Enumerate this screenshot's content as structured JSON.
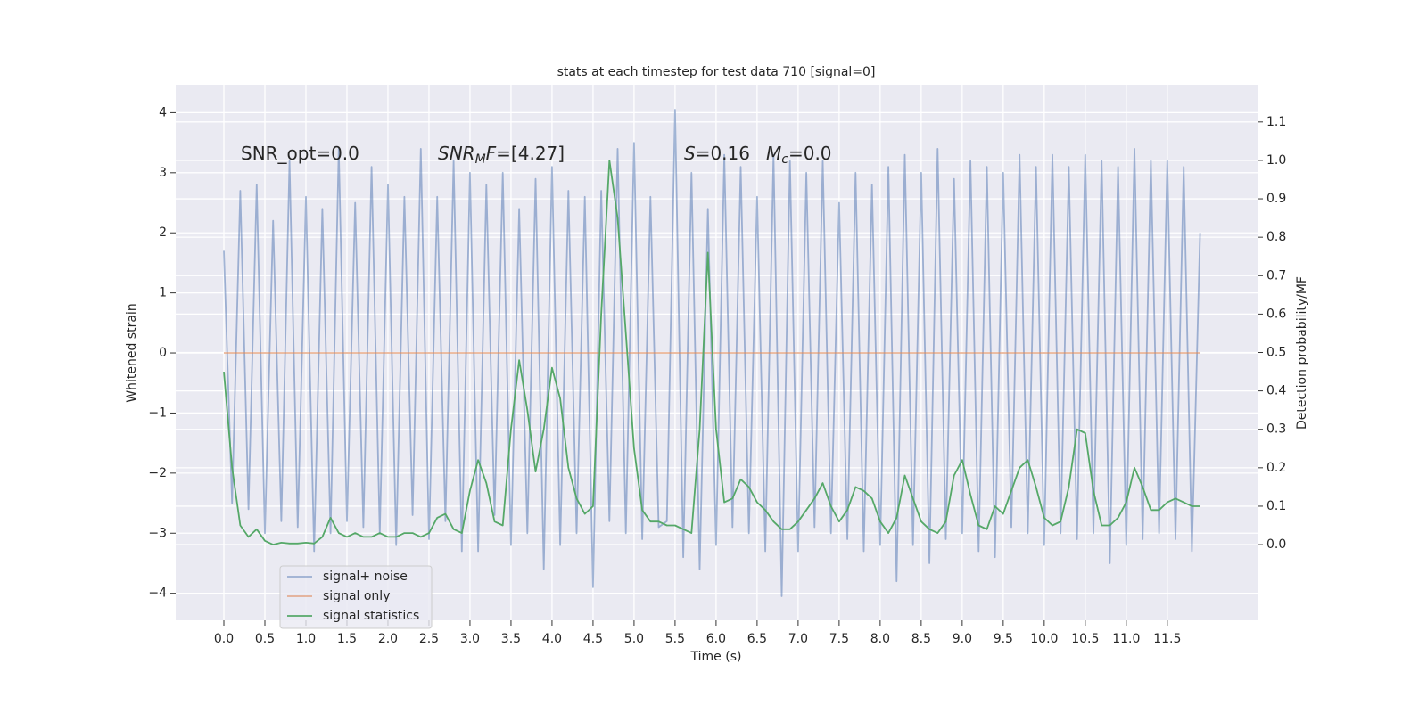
{
  "chart_data": {
    "type": "line",
    "title": "stats at each timestep for test data 710 [signal=0]",
    "xlabel": "Time (s)",
    "ylabel": "Whitened strain",
    "y2label": "Detection probability/MF",
    "annotations": [
      [
        {
          "text": "SNR_opt=0.0",
          "style": "normal"
        }
      ],
      [
        {
          "text": "SNR",
          "style": "italic"
        },
        {
          "text": "M",
          "style": "sub"
        },
        {
          "text": "F",
          "style": "italic"
        },
        {
          "text": "=[4.27]",
          "style": "normal"
        }
      ],
      [
        {
          "text": "S",
          "style": "italic"
        },
        {
          "text": "=0.16",
          "style": "normal"
        },
        {
          "text": "M",
          "style": "italic"
        },
        {
          "text": "c",
          "style": "sub"
        },
        {
          "text": "=0.0",
          "style": "normal"
        }
      ]
    ],
    "x": [
      0,
      0.1,
      0.2,
      0.3,
      0.4,
      0.5,
      0.6,
      0.7,
      0.8,
      0.9,
      1,
      1.1,
      1.2,
      1.3,
      1.4,
      1.5,
      1.6,
      1.7,
      1.8,
      1.9,
      2,
      2.1,
      2.2,
      2.3,
      2.4,
      2.5,
      2.6,
      2.7,
      2.8,
      2.9,
      3,
      3.1,
      3.2,
      3.3,
      3.4,
      3.5,
      3.6,
      3.7,
      3.8,
      3.9,
      4,
      4.1,
      4.2,
      4.3,
      4.4,
      4.5,
      4.6,
      4.7,
      4.8,
      4.9,
      5,
      5.1,
      5.2,
      5.3,
      5.4,
      5.5,
      5.6,
      5.7,
      5.8,
      5.9,
      6,
      6.1,
      6.2,
      6.3,
      6.4,
      6.5,
      6.6,
      6.7,
      6.8,
      6.9,
      7,
      7.1,
      7.2,
      7.3,
      7.4,
      7.5,
      7.6,
      7.7,
      7.8,
      7.9,
      8,
      8.1,
      8.2,
      8.3,
      8.4,
      8.5,
      8.6,
      8.7,
      8.8,
      8.9,
      9,
      9.1,
      9.2,
      9.3,
      9.4,
      9.5,
      9.6,
      9.7,
      9.8,
      9.9,
      10,
      10.1,
      10.2,
      10.3,
      10.4,
      10.5,
      10.6,
      10.7,
      10.8,
      10.9,
      11,
      11.1,
      11.2,
      11.3,
      11.4,
      11.5,
      11.6,
      11.7,
      11.8,
      11.9
    ],
    "series": [
      {
        "name": "signal+ noise",
        "color": "#4c72b0",
        "opacity": 0.5,
        "values": [
          1.7,
          -2.5,
          2.7,
          -2.6,
          2.8,
          -3.0,
          2.2,
          -2.8,
          3.2,
          -2.9,
          2.6,
          -3.3,
          2.4,
          -3.0,
          3.4,
          -2.8,
          2.5,
          -2.9,
          3.1,
          -3.0,
          2.8,
          -3.2,
          2.6,
          -2.7,
          3.4,
          -3.1,
          2.6,
          -2.8,
          3.2,
          -3.3,
          3.0,
          -3.3,
          2.8,
          -2.7,
          3.0,
          -3.2,
          2.4,
          -3.0,
          2.9,
          -3.6,
          3.1,
          -3.2,
          2.7,
          -3.0,
          2.6,
          -3.9,
          2.7,
          -2.8,
          3.4,
          -3.0,
          3.5,
          -3.1,
          2.6,
          -2.9,
          -2.8,
          4.05,
          -3.4,
          3.0,
          -3.6,
          2.4,
          -3.2,
          3.3,
          -2.9,
          3.1,
          -3.0,
          2.6,
          -3.3,
          3.3,
          -4.05,
          3.2,
          -3.3,
          3.0,
          -2.9,
          3.2,
          -3.0,
          2.5,
          -3.1,
          3.0,
          -3.3,
          2.8,
          -3.2,
          3.1,
          -3.8,
          3.3,
          -3.2,
          3.0,
          -3.5,
          3.4,
          -3.1,
          2.9,
          -3.0,
          3.2,
          -3.3,
          3.1,
          -3.4,
          3.0,
          -2.9,
          3.3,
          -3.0,
          3.1,
          -3.2,
          3.3,
          -3.0,
          3.1,
          -3.1,
          3.3,
          -3.0,
          3.2,
          -3.5,
          3.1,
          -3.2,
          3.4,
          -3.1,
          3.2,
          -3.0,
          3.2,
          -3.1,
          3.1,
          -3.3,
          2.0
        ]
      },
      {
        "name": "signal only",
        "color": "#dd8452",
        "opacity": 0.6,
        "values": [
          0,
          0,
          0,
          0,
          0,
          0,
          0,
          0,
          0,
          0,
          0,
          0,
          0,
          0,
          0,
          0,
          0,
          0,
          0,
          0,
          0,
          0,
          0,
          0,
          0,
          0,
          0,
          0,
          0,
          0,
          0,
          0,
          0,
          0,
          0,
          0,
          0,
          0,
          0,
          0,
          0,
          0,
          0,
          0,
          0,
          0,
          0,
          0,
          0,
          0,
          0,
          0,
          0,
          0,
          0,
          0,
          0,
          0,
          0,
          0,
          0,
          0,
          0,
          0,
          0,
          0,
          0,
          0,
          0,
          0,
          0,
          0,
          0,
          0,
          0,
          0,
          0,
          0,
          0,
          0,
          0,
          0,
          0,
          0,
          0,
          0,
          0,
          0,
          0,
          0,
          0,
          0,
          0,
          0,
          0,
          0,
          0,
          0,
          0,
          0,
          0,
          0,
          0,
          0,
          0,
          0,
          0,
          0,
          0,
          0,
          0,
          0,
          0,
          0,
          0,
          0,
          0,
          0,
          0,
          0
        ]
      },
      {
        "name": "signal statistics",
        "color": "#55a868",
        "opacity": 1,
        "axis": "y2",
        "values": [
          0.45,
          0.2,
          0.05,
          0.02,
          0.04,
          0.01,
          0.0,
          0.005,
          0.003,
          0.003,
          0.005,
          0.003,
          0.02,
          0.07,
          0.03,
          0.02,
          0.03,
          0.02,
          0.02,
          0.03,
          0.02,
          0.02,
          0.03,
          0.03,
          0.02,
          0.03,
          0.07,
          0.08,
          0.04,
          0.03,
          0.14,
          0.22,
          0.16,
          0.06,
          0.05,
          0.3,
          0.48,
          0.35,
          0.19,
          0.3,
          0.46,
          0.38,
          0.2,
          0.12,
          0.08,
          0.1,
          0.6,
          1.0,
          0.85,
          0.55,
          0.25,
          0.09,
          0.06,
          0.06,
          0.05,
          0.05,
          0.04,
          0.03,
          0.3,
          0.76,
          0.3,
          0.11,
          0.12,
          0.17,
          0.15,
          0.11,
          0.09,
          0.06,
          0.04,
          0.04,
          0.06,
          0.09,
          0.12,
          0.16,
          0.1,
          0.06,
          0.09,
          0.15,
          0.14,
          0.12,
          0.06,
          0.03,
          0.07,
          0.18,
          0.12,
          0.06,
          0.04,
          0.03,
          0.06,
          0.18,
          0.22,
          0.13,
          0.05,
          0.04,
          0.1,
          0.08,
          0.14,
          0.2,
          0.22,
          0.15,
          0.07,
          0.05,
          0.06,
          0.15,
          0.3,
          0.29,
          0.14,
          0.05,
          0.05,
          0.07,
          0.11,
          0.2,
          0.15,
          0.09,
          0.09,
          0.11,
          0.12,
          0.11,
          0.1,
          0.1
        ]
      }
    ],
    "xlim": [
      -0.587,
      12.6
    ],
    "xticks": [
      {
        "value": 0,
        "label": "0.0"
      },
      0.5,
      {
        "value": 1,
        "label": "1.0"
      },
      1.5,
      {
        "value": 2,
        "label": "2.0"
      },
      2.5,
      {
        "value": 3,
        "label": "3.0"
      },
      3.5,
      {
        "value": 4,
        "label": "4.0"
      },
      4.5,
      {
        "value": 5,
        "label": "5.0"
      },
      5.5,
      {
        "value": 6,
        "label": "6.0"
      },
      6.5,
      {
        "value": 7,
        "label": "7.0"
      },
      7.5,
      {
        "value": 8,
        "label": "8.0"
      },
      8.5,
      {
        "value": 9,
        "label": "9.0"
      },
      9.5,
      {
        "value": 10,
        "label": "10.0"
      },
      10.5,
      {
        "value": 11,
        "label": "11.0"
      },
      11.5
    ],
    "ylim": [
      -4.45,
      4.466
    ],
    "yticks": [
      {
        "value": -4,
        "label": "−4"
      },
      {
        "value": -3,
        "label": "−3"
      },
      {
        "value": -2,
        "label": "−2"
      },
      {
        "value": -1,
        "label": "−1"
      },
      0,
      1,
      2,
      3,
      4
    ],
    "y2lim": [
      -0.197,
      1.197
    ],
    "y2ticks": [
      {
        "value": 0,
        "label": "0.0"
      },
      0.1,
      0.2,
      0.3,
      0.4,
      0.5,
      0.6,
      0.7,
      0.8,
      0.9,
      {
        "value": 1,
        "label": "1.0"
      },
      1.1
    ],
    "grid": true,
    "legend": "lower left"
  }
}
